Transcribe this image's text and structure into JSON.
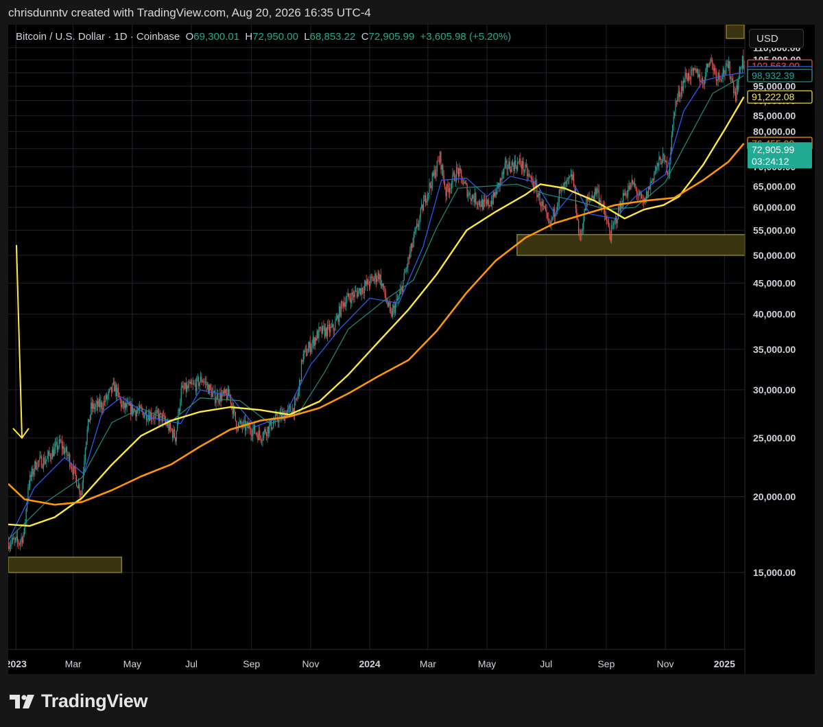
{
  "header": {
    "credit": "chrisdunntv created with TradingView.com, Aug 20, 2026 16:35 UTC-4"
  },
  "legend": {
    "symbol": "Bitcoin / U.S. Dollar · 1D · Coinbase",
    "o_label": "O",
    "o_value": "69,300.01",
    "h_label": "H",
    "h_value": "72,950.00",
    "l_label": "L",
    "l_value": "68,853.22",
    "c_label": "C",
    "c_value": "72,905.99",
    "change": "+3,605.98 (+5.20%)"
  },
  "currency_button": "USD",
  "brand": {
    "name": "TradingView"
  },
  "colors": {
    "background": "#000000",
    "grid": "#23232f",
    "candle_up": "#26a69a",
    "candle_down": "#ef5350",
    "ma_fast": "#2962ff",
    "ma_mid": "#1e8f7e",
    "ma_slow": "#ffeb3b",
    "ma_long": "#ff9800",
    "zone_fill": "#3a3510",
    "zone_border": "#8a7f2a",
    "arrow": "#ffeb3b"
  },
  "chart_data": {
    "type": "candlestick",
    "title": "Bitcoin / U.S. Dollar · 1D · Coinbase",
    "y_scale": "log",
    "ylim": [
      11200,
      120000
    ],
    "y_ticks": [
      15000,
      20000,
      25000,
      30000,
      35000,
      40000,
      45000,
      50000,
      55000,
      60000,
      65000,
      70000,
      75000,
      80000,
      85000,
      90000,
      95000,
      100000,
      105000,
      110000
    ],
    "y_tick_labels": [
      "15,000.00",
      "20,000.00",
      "25,000.00",
      "30,000.00",
      "35,000.00",
      "40,000.00",
      "45,000.00",
      "50,000.00",
      "55,000.00",
      "60,000.00",
      "65,000.00",
      "70,000.00",
      "75,000.00",
      "80,000.00",
      "85,000.00",
      "90,000.00",
      "95,000.00",
      "100,000.00",
      "105,000.00",
      "110,000.00"
    ],
    "x_range": [
      "2022-12-24",
      "2025-01-22"
    ],
    "x_ticks": [
      {
        "date": "2023-01-01",
        "label": "2023",
        "bold": true
      },
      {
        "date": "2023-03-01",
        "label": "Mar",
        "bold": false
      },
      {
        "date": "2023-05-01",
        "label": "May",
        "bold": false
      },
      {
        "date": "2023-07-01",
        "label": "Jul",
        "bold": false
      },
      {
        "date": "2023-09-01",
        "label": "Sep",
        "bold": false
      },
      {
        "date": "2023-11-01",
        "label": "Nov",
        "bold": false
      },
      {
        "date": "2024-01-01",
        "label": "2024",
        "bold": true
      },
      {
        "date": "2024-03-01",
        "label": "Mar",
        "bold": false
      },
      {
        "date": "2024-05-01",
        "label": "May",
        "bold": false
      },
      {
        "date": "2024-07-01",
        "label": "Jul",
        "bold": false
      },
      {
        "date": "2024-09-01",
        "label": "Sep",
        "bold": false
      },
      {
        "date": "2024-11-01",
        "label": "Nov",
        "bold": false
      },
      {
        "date": "2025-01-01",
        "label": "2025",
        "bold": true
      }
    ],
    "price_path": [
      [
        "2022-12-24",
        16800
      ],
      [
        "2023-01-05",
        16850
      ],
      [
        "2023-01-10",
        17400
      ],
      [
        "2023-01-14",
        20900
      ],
      [
        "2023-01-22",
        22700
      ],
      [
        "2023-02-01",
        23000
      ],
      [
        "2023-02-16",
        24500
      ],
      [
        "2023-02-25",
        23200
      ],
      [
        "2023-03-10",
        20200
      ],
      [
        "2023-03-14",
        24500
      ],
      [
        "2023-03-20",
        28000
      ],
      [
        "2023-04-01",
        28400
      ],
      [
        "2023-04-13",
        30400
      ],
      [
        "2023-04-21",
        28200
      ],
      [
        "2023-05-10",
        27600
      ],
      [
        "2023-06-01",
        27000
      ],
      [
        "2023-06-15",
        25100
      ],
      [
        "2023-06-21",
        29900
      ],
      [
        "2023-07-05",
        30500
      ],
      [
        "2023-07-13",
        31300
      ],
      [
        "2023-07-25",
        29200
      ],
      [
        "2023-08-10",
        29400
      ],
      [
        "2023-08-17",
        26300
      ],
      [
        "2023-09-01",
        25900
      ],
      [
        "2023-09-11",
        25200
      ],
      [
        "2023-09-29",
        27000
      ],
      [
        "2023-10-16",
        28000
      ],
      [
        "2023-10-20",
        29800
      ],
      [
        "2023-10-24",
        33900
      ],
      [
        "2023-11-10",
        37300
      ],
      [
        "2023-11-25",
        37800
      ],
      [
        "2023-12-05",
        41900
      ],
      [
        "2023-12-20",
        43500
      ],
      [
        "2024-01-11",
        46500
      ],
      [
        "2024-01-23",
        39800
      ],
      [
        "2024-02-01",
        42700
      ],
      [
        "2024-02-14",
        51800
      ],
      [
        "2024-02-28",
        62500
      ],
      [
        "2024-03-05",
        66000
      ],
      [
        "2024-03-14",
        72500
      ],
      [
        "2024-03-20",
        63500
      ],
      [
        "2024-04-01",
        69000
      ],
      [
        "2024-04-13",
        63000
      ],
      [
        "2024-04-30",
        60200
      ],
      [
        "2024-05-08",
        62000
      ],
      [
        "2024-05-21",
        70000
      ],
      [
        "2024-06-05",
        71000
      ],
      [
        "2024-06-20",
        65000
      ],
      [
        "2024-07-05",
        55600
      ],
      [
        "2024-07-15",
        63000
      ],
      [
        "2024-07-29",
        67500
      ],
      [
        "2024-08-05",
        53000
      ],
      [
        "2024-08-12",
        61000
      ],
      [
        "2024-08-23",
        64200
      ],
      [
        "2024-09-06",
        54000
      ],
      [
        "2024-09-20",
        63000
      ],
      [
        "2024-09-29",
        65600
      ],
      [
        "2024-10-10",
        60500
      ],
      [
        "2024-10-21",
        68500
      ],
      [
        "2024-10-29",
        72500
      ],
      [
        "2024-11-05",
        69000
      ],
      [
        "2024-11-11",
        88000
      ],
      [
        "2024-11-22",
        98500
      ],
      [
        "2024-12-05",
        100000
      ],
      [
        "2024-12-10",
        96000
      ],
      [
        "2024-12-17",
        106000
      ],
      [
        "2024-12-25",
        98500
      ],
      [
        "2025-01-06",
        102000
      ],
      [
        "2025-01-13",
        92000
      ],
      [
        "2025-01-20",
        106000
      ],
      [
        "2025-01-21",
        102563
      ]
    ],
    "series": [
      {
        "name": "",
        "color": "#2962ff",
        "points": [
          [
            "2022-12-24",
            16900
          ],
          [
            "2023-01-20",
            20700
          ],
          [
            "2023-02-20",
            23200
          ],
          [
            "2023-03-12",
            21800
          ],
          [
            "2023-03-31",
            27600
          ],
          [
            "2023-04-20",
            29200
          ],
          [
            "2023-05-20",
            27000
          ],
          [
            "2023-06-20",
            26400
          ],
          [
            "2023-07-10",
            30000
          ],
          [
            "2023-08-10",
            29300
          ],
          [
            "2023-09-05",
            26100
          ],
          [
            "2023-10-05",
            27200
          ],
          [
            "2023-11-01",
            33000
          ],
          [
            "2023-12-01",
            37800
          ],
          [
            "2024-01-01",
            42500
          ],
          [
            "2024-01-31",
            41700
          ],
          [
            "2024-02-25",
            51600
          ],
          [
            "2024-03-15",
            66500
          ],
          [
            "2024-04-10",
            67000
          ],
          [
            "2024-05-01",
            62500
          ],
          [
            "2024-05-25",
            67500
          ],
          [
            "2024-06-20",
            66000
          ],
          [
            "2024-07-10",
            58500
          ],
          [
            "2024-08-01",
            64500
          ],
          [
            "2024-08-15",
            58500
          ],
          [
            "2024-09-10",
            57500
          ],
          [
            "2024-10-01",
            62500
          ],
          [
            "2024-11-01",
            68000
          ],
          [
            "2024-11-20",
            86500
          ],
          [
            "2024-12-10",
            97000
          ],
          [
            "2025-01-01",
            99000
          ],
          [
            "2025-01-21",
            99995.85
          ]
        ]
      },
      {
        "name": "",
        "color": "#1e8f7e",
        "points": [
          [
            "2022-12-24",
            17000
          ],
          [
            "2023-02-01",
            19600
          ],
          [
            "2023-03-10",
            21500
          ],
          [
            "2023-04-10",
            26500
          ],
          [
            "2023-05-10",
            28000
          ],
          [
            "2023-06-10",
            26600
          ],
          [
            "2023-07-10",
            29100
          ],
          [
            "2023-08-20",
            28800
          ],
          [
            "2023-09-20",
            26400
          ],
          [
            "2023-10-20",
            27500
          ],
          [
            "2023-11-15",
            32000
          ],
          [
            "2023-12-10",
            37800
          ],
          [
            "2024-01-15",
            42000
          ],
          [
            "2024-02-15",
            45500
          ],
          [
            "2024-03-10",
            55500
          ],
          [
            "2024-04-01",
            64500
          ],
          [
            "2024-05-01",
            65000
          ],
          [
            "2024-06-01",
            65500
          ],
          [
            "2024-07-01",
            63000
          ],
          [
            "2024-08-01",
            61500
          ],
          [
            "2024-09-01",
            59500
          ],
          [
            "2024-10-01",
            60000
          ],
          [
            "2024-11-01",
            66000
          ],
          [
            "2024-11-25",
            78000
          ],
          [
            "2024-12-20",
            92500
          ],
          [
            "2025-01-21",
            98932.39
          ]
        ]
      },
      {
        "name": "",
        "color": "#ffeb3b",
        "points": [
          [
            "2022-12-24",
            18000
          ],
          [
            "2023-01-15",
            17900
          ],
          [
            "2023-02-10",
            18500
          ],
          [
            "2023-03-10",
            19900
          ],
          [
            "2023-04-10",
            22600
          ],
          [
            "2023-05-10",
            25200
          ],
          [
            "2023-06-10",
            26700
          ],
          [
            "2023-07-10",
            27600
          ],
          [
            "2023-08-10",
            28100
          ],
          [
            "2023-09-10",
            27800
          ],
          [
            "2023-10-10",
            27300
          ],
          [
            "2023-11-10",
            28700
          ],
          [
            "2023-12-10",
            31800
          ],
          [
            "2024-01-10",
            36000
          ],
          [
            "2024-02-10",
            40700
          ],
          [
            "2024-03-10",
            46500
          ],
          [
            "2024-04-10",
            55000
          ],
          [
            "2024-05-10",
            59000
          ],
          [
            "2024-06-10",
            63000
          ],
          [
            "2024-06-25",
            65500
          ],
          [
            "2024-07-20",
            64500
          ],
          [
            "2024-08-20",
            61500
          ],
          [
            "2024-09-20",
            57500
          ],
          [
            "2024-10-10",
            59500
          ],
          [
            "2024-10-30",
            60500
          ],
          [
            "2024-11-15",
            62500
          ],
          [
            "2024-12-10",
            70500
          ],
          [
            "2025-01-01",
            80500
          ],
          [
            "2025-01-21",
            91222.08
          ]
        ]
      },
      {
        "name": "",
        "color": "#ff9800",
        "points": [
          [
            "2022-12-24",
            21000
          ],
          [
            "2023-01-10",
            19800
          ],
          [
            "2023-02-10",
            19400
          ],
          [
            "2023-03-10",
            19600
          ],
          [
            "2023-04-10",
            20500
          ],
          [
            "2023-05-10",
            21600
          ],
          [
            "2023-06-10",
            22600
          ],
          [
            "2023-07-10",
            24200
          ],
          [
            "2023-08-10",
            25800
          ],
          [
            "2023-09-10",
            26700
          ],
          [
            "2023-10-10",
            27100
          ],
          [
            "2023-11-10",
            28000
          ],
          [
            "2023-12-10",
            29600
          ],
          [
            "2024-01-10",
            31600
          ],
          [
            "2024-02-10",
            33600
          ],
          [
            "2024-03-10",
            37500
          ],
          [
            "2024-04-10",
            43400
          ],
          [
            "2024-05-10",
            49000
          ],
          [
            "2024-06-10",
            53500
          ],
          [
            "2024-07-10",
            56500
          ],
          [
            "2024-08-10",
            58500
          ],
          [
            "2024-09-10",
            60500
          ],
          [
            "2024-10-10",
            61500
          ],
          [
            "2024-11-10",
            62200
          ],
          [
            "2024-12-10",
            66500
          ],
          [
            "2025-01-05",
            71300
          ],
          [
            "2025-01-21",
            76455.99
          ]
        ]
      }
    ],
    "zones": [
      {
        "x0": "2022-12-24",
        "x1": "2023-04-20",
        "y0": 15000,
        "y1": 15900
      },
      {
        "x0": "2024-06-01",
        "x1": "2025-01-22",
        "y0": 50000,
        "y1": 54100
      }
    ],
    "annotation_arrow": {
      "x": "2023-01-05",
      "y_from": 52000,
      "y_to": 25000
    },
    "price_labels": [
      {
        "text": "102,563.00",
        "value": 102563,
        "color": "#ef5350",
        "fill": "#000000"
      },
      {
        "text": "99,995.85",
        "value": 99995.85,
        "color": "#2962ff",
        "fill": "#000000"
      },
      {
        "text": "98,932.39",
        "value": 98932.39,
        "color": "#26a69a",
        "fill": "#000000"
      },
      {
        "text": "91,222.08",
        "value": 91222.08,
        "color": "#ffeb3b",
        "fill": "#000000"
      },
      {
        "text": "76,455.99",
        "value": 76455.99,
        "color": "#ff9800",
        "fill": "#000000"
      }
    ],
    "last_price_label": {
      "price": "72,905.99",
      "countdown": "03:24:12",
      "value": 72905.99,
      "color": "#22ab94"
    }
  }
}
